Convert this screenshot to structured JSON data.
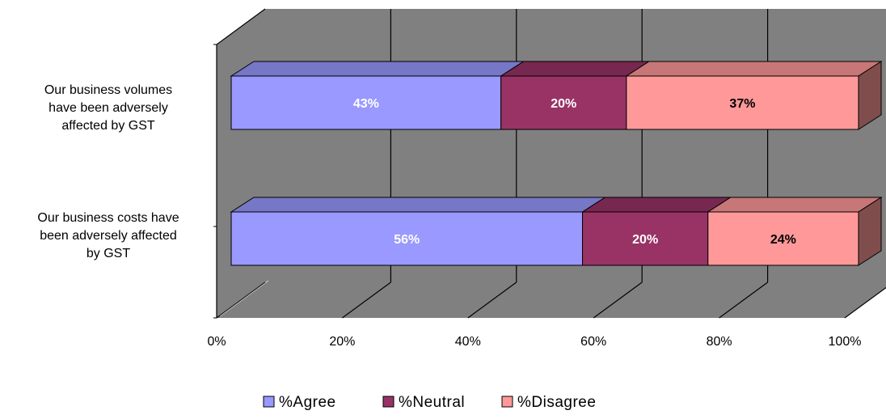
{
  "chart_data": {
    "type": "bar",
    "orientation": "horizontal",
    "stacked": "percent",
    "style": "3d",
    "categories": [
      "Our business volumes have been adversely affected by GST",
      "Our business costs have been adversely affected by GST"
    ],
    "category_label_lines": [
      [
        "Our business volumes",
        "have been adversely",
        "affected by GST"
      ],
      [
        "Our business costs have",
        "been adversely affected",
        "by GST"
      ]
    ],
    "series": [
      {
        "name": "%Agree",
        "values": [
          43,
          56
        ],
        "labels": [
          "43%",
          "56%"
        ],
        "color": "#9999ff",
        "label_color": "#ffffff"
      },
      {
        "name": "%Neutral",
        "values": [
          20,
          20
        ],
        "labels": [
          "20%",
          "20%"
        ],
        "color": "#993366",
        "label_color": "#ffffff"
      },
      {
        "name": "%Disagree",
        "values": [
          37,
          24
        ],
        "labels": [
          "37%",
          "24%"
        ],
        "color": "#ff9999",
        "label_color": "#000000"
      }
    ],
    "xlim": [
      0,
      100
    ],
    "x_ticks": [
      "0%",
      "20%",
      "40%",
      "60%",
      "80%",
      "100%"
    ],
    "grid": true,
    "legend_position": "bottom",
    "wall_color": "#808080"
  }
}
